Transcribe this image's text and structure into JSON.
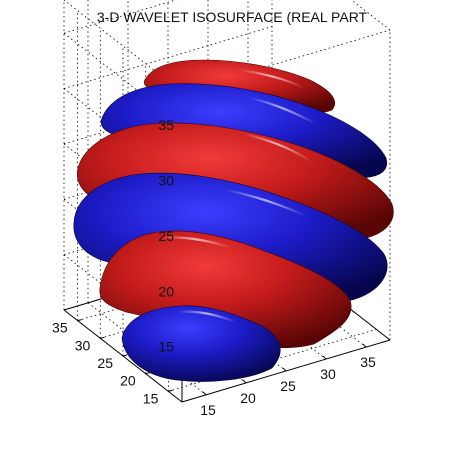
{
  "chart_data": {
    "type": "isosurface",
    "title": "3-D WAVELET ISOSURFACE (REAL PART",
    "xlabel": "",
    "ylabel": "",
    "zlabel": "",
    "x_ticks": [
      "15",
      "20",
      "25",
      "30",
      "35"
    ],
    "y_ticks": [
      "15",
      "20",
      "25",
      "30",
      "35"
    ],
    "z_ticks": [
      "15",
      "20",
      "25",
      "30",
      "35"
    ],
    "xlim": [
      12,
      38
    ],
    "ylim": [
      12,
      38
    ],
    "zlim": [
      10,
      38
    ],
    "grid": true,
    "bands": [
      {
        "part": "negative",
        "color": "#1a1aa6",
        "order": 1
      },
      {
        "part": "positive",
        "color": "#a31414",
        "order": 2
      },
      {
        "part": "negative",
        "color": "#1a1aa6",
        "order": 3
      },
      {
        "part": "positive",
        "color": "#a31414",
        "order": 4
      },
      {
        "part": "negative",
        "color": "#1a1aa6",
        "order": 5
      },
      {
        "part": "positive",
        "color": "#a31414",
        "order": 6
      }
    ],
    "colors": {
      "positive": "#a31414",
      "negative": "#1a1aa6"
    }
  }
}
